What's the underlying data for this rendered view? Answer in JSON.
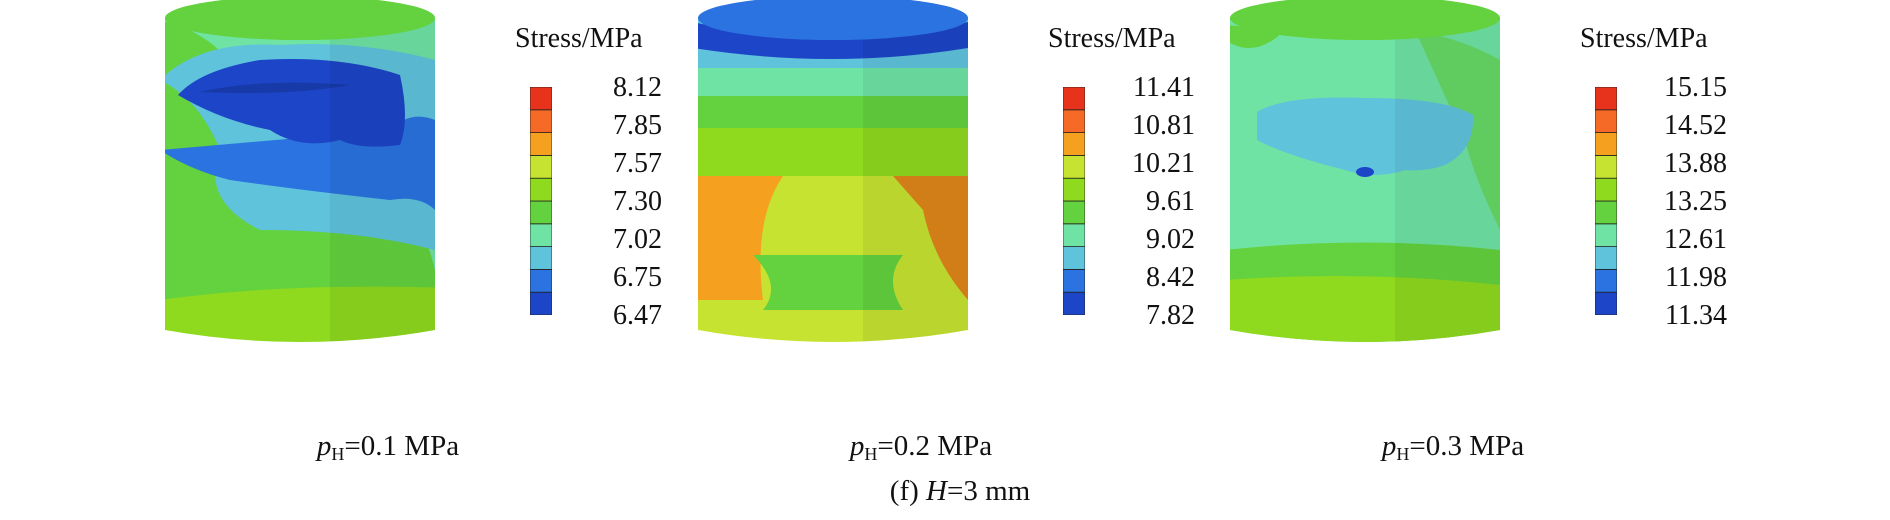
{
  "legend_title": "Stress/MPa",
  "figure_caption": {
    "prefix": "(f) ",
    "var": "H",
    "rest": "=3 mm"
  },
  "colormap": [
    "#1d45c8",
    "#2a73e0",
    "#5fc3dc",
    "#6fe3a4",
    "#63d23e",
    "#8fd91e",
    "#c7e332",
    "#f5a11f",
    "#f56a26",
    "#e8331c"
  ],
  "panels": [
    {
      "label": {
        "var": "p",
        "sub": "H",
        "rest": "=0.1 MPa"
      },
      "ticks": [
        "8.12",
        "7.85",
        "7.57",
        "7.30",
        "7.02",
        "6.75",
        "6.47"
      ]
    },
    {
      "label": {
        "var": "p",
        "sub": "H",
        "rest": "=0.2 MPa"
      },
      "ticks": [
        "11.41",
        "10.81",
        "10.21",
        "9.61",
        "9.02",
        "8.42",
        "7.82"
      ]
    },
    {
      "label": {
        "var": "p",
        "sub": "H",
        "rest": "=0.3 MPa"
      },
      "ticks": [
        "15.15",
        "14.52",
        "13.88",
        "13.25",
        "12.61",
        "11.98",
        "11.34"
      ]
    }
  ]
}
